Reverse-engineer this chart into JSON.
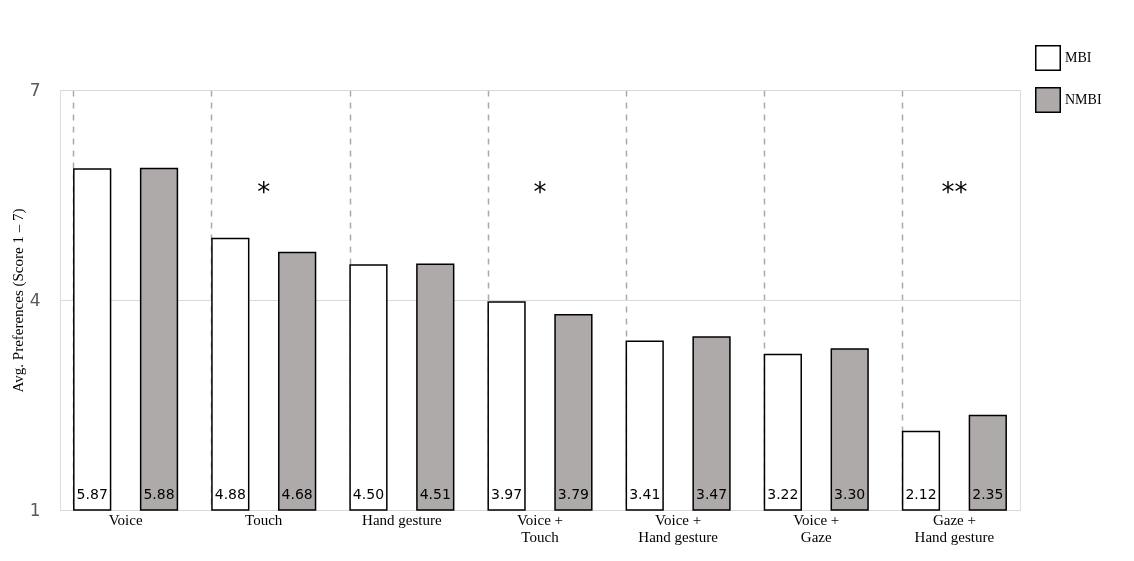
{
  "chart_data": {
    "type": "bar",
    "categories": [
      "Voice",
      "Touch",
      "Hand gesture",
      "Voice +\nTouch",
      "Voice +\nHand gesture",
      "Voice +\nGaze",
      "Gaze +\nHand gesture"
    ],
    "series": [
      {
        "name": "MBI",
        "color": "#ffffff",
        "values": [
          5.87,
          4.88,
          4.5,
          3.97,
          3.41,
          3.22,
          2.12
        ],
        "value_labels": [
          "5.87",
          "4.88",
          "4.50",
          "3.97",
          "3.41",
          "3.22",
          "2.12"
        ]
      },
      {
        "name": "NMBI",
        "color": "#aeaaaa",
        "values": [
          5.88,
          4.68,
          4.51,
          3.79,
          3.47,
          3.3,
          2.35
        ],
        "value_labels": [
          "5.88",
          "4.68",
          "4.51",
          "3.79",
          "3.47",
          "3.30",
          "2.35"
        ]
      }
    ],
    "ylabel": "Avg. Preferences (Score 1 – 7)",
    "ylim": [
      1,
      7
    ],
    "yticks": [
      1,
      4,
      7
    ],
    "grid": true,
    "legend": "top right",
    "annotations": [
      "*",
      "*",
      "**"
    ]
  }
}
